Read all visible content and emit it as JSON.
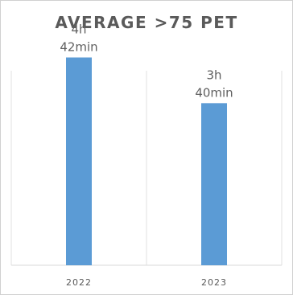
{
  "chart_data": {
    "type": "bar",
    "title": "AVERAGE >75 PET",
    "categories": [
      "2022",
      "2023"
    ],
    "values_minutes": [
      282,
      220
    ],
    "data_labels": [
      [
        "4h",
        "42min"
      ],
      [
        "3h",
        "40min"
      ]
    ],
    "ylim": [
      0,
      300
    ],
    "gridlines": "vertical separators only",
    "bar_color": "#5b9bd5",
    "legend": "none"
  }
}
